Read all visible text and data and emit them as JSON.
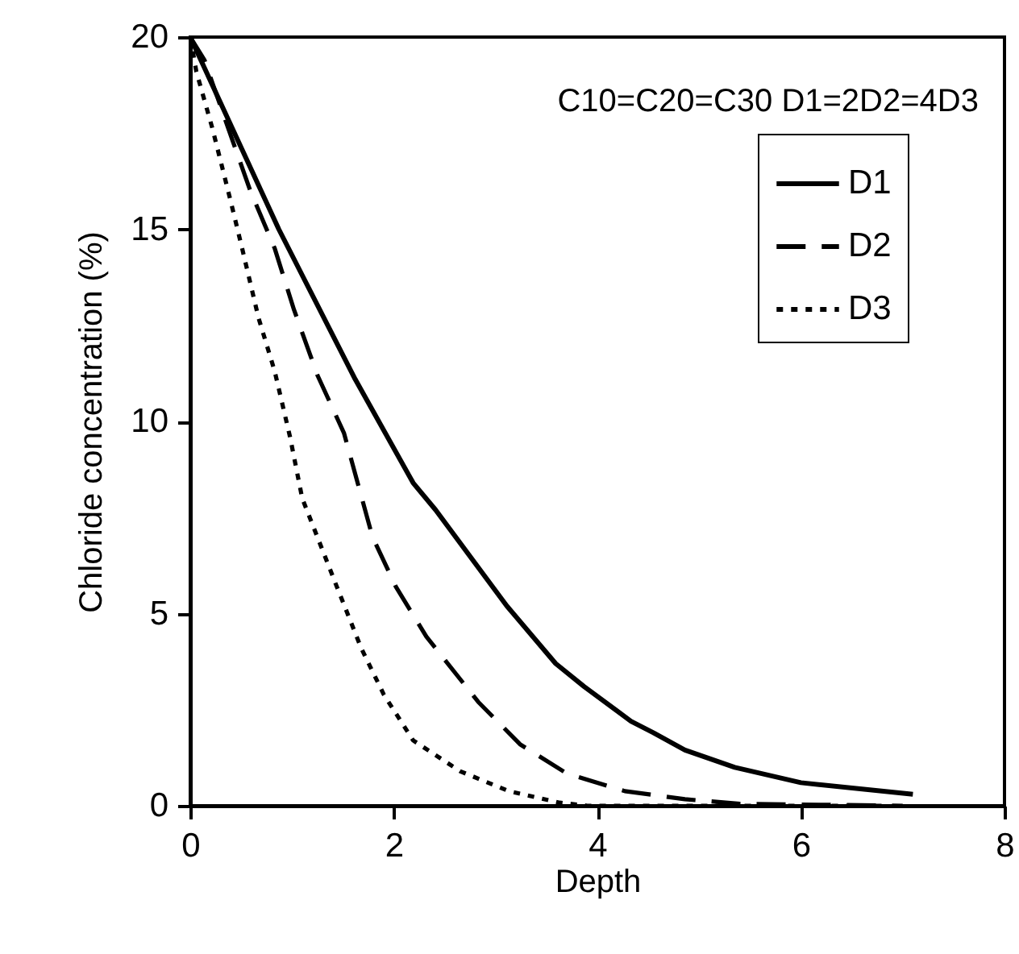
{
  "chart_data": {
    "type": "line",
    "xlabel": "Depth",
    "ylabel": "Chloride concentration (%)",
    "annotations": [
      "C10=C20=C30  D1=2D2=4D3"
    ],
    "xlim": [
      0,
      8
    ],
    "xticks": [
      0,
      2,
      4,
      6,
      8
    ],
    "ylim": [
      0,
      20
    ],
    "yticks": [
      0,
      5,
      10,
      15,
      20
    ],
    "grid": false,
    "legend": "top right",
    "marker": "none",
    "series": [
      {
        "name": "D1",
        "color": "#000000",
        "line_style": "solid",
        "x": [
          0,
          0.87,
          1.62,
          2.19,
          2.41,
          3.11,
          3.59,
          3.87,
          4.33,
          4.55,
          4.86,
          5.35,
          6.0,
          7.1
        ],
        "values": [
          20,
          15,
          11.1,
          8.4,
          7.7,
          5.2,
          3.7,
          3.1,
          2.2,
          1.9,
          1.45,
          1.0,
          0.6,
          0.3
        ]
      },
      {
        "name": "D2",
        "color": "#000000",
        "line_style": "dashed",
        "x": [
          0,
          0.14,
          0.35,
          0.59,
          0.83,
          1.02,
          1.25,
          1.51,
          1.79,
          2.02,
          2.32,
          2.83,
          3.24,
          3.7,
          4.27,
          4.86,
          5.4,
          7.0
        ],
        "values": [
          20,
          19.4,
          17.8,
          16.0,
          14.5,
          12.9,
          11.2,
          9.7,
          7.0,
          5.7,
          4.4,
          2.7,
          1.6,
          0.84,
          0.38,
          0.17,
          0.05,
          0
        ]
      },
      {
        "name": "D3",
        "color": "#000000",
        "line_style": "dotted",
        "x": [
          0,
          0.06,
          0.22,
          0.4,
          0.51,
          0.67,
          0.83,
          0.98,
          1.1,
          1.44,
          1.68,
          1.9,
          2.19,
          2.65,
          3.13,
          3.63,
          3.9,
          6.8
        ],
        "values": [
          20,
          19.1,
          17.6,
          15.7,
          14.5,
          12.7,
          11.3,
          9.6,
          8.0,
          5.7,
          4.1,
          2.9,
          1.7,
          0.9,
          0.38,
          0.08,
          0,
          0
        ]
      }
    ]
  }
}
